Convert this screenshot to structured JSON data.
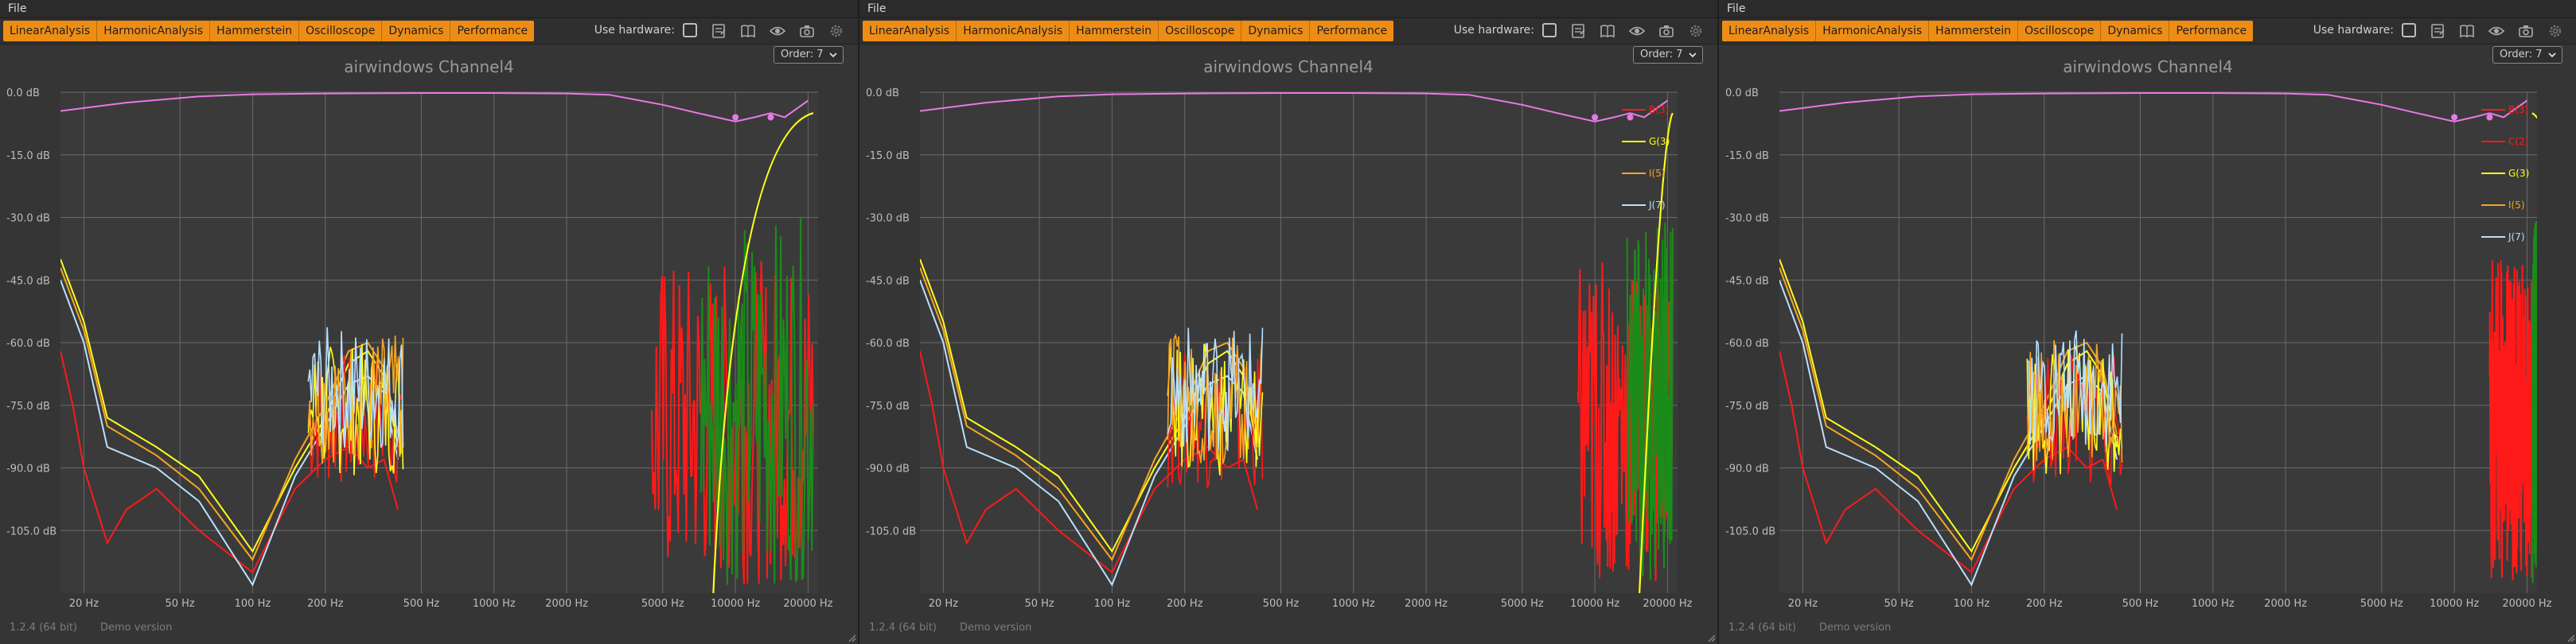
{
  "window_title": "airwindows Channel4",
  "menu": {
    "file": "File"
  },
  "tabs": [
    "LinearAnalysis",
    "HarmonicAnalysis",
    "Hammerstein",
    "Oscilloscope",
    "Dynamics",
    "Performance"
  ],
  "toolbar": {
    "use_hardware_label": "Use hardware:",
    "icons": [
      "notes-icon",
      "book-icon",
      "eye-icon",
      "camera-icon",
      "gear-icon"
    ]
  },
  "order_select": {
    "value": "Order: 7"
  },
  "footer": {
    "version": "1.2.4 (64 bit)",
    "edition": "Demo version"
  },
  "colors": {
    "accent_tab": "#ee8d16",
    "background": "#353535",
    "grid": "#6a6a6a",
    "fundamental": "#e879e6",
    "h2": "#ff1a1a",
    "h3": "#ffff1a",
    "h4": "#1a8c1a",
    "h5": "#f5a623",
    "h7": "#b8e0ff"
  },
  "panels": [
    {
      "id": "left",
      "legend": []
    },
    {
      "id": "middle",
      "legend": [
        "B(3)",
        "G(3)",
        "I(5)",
        "J(7)"
      ]
    },
    {
      "id": "right",
      "legend": [
        "B(3)",
        "C(2)",
        "G(3)",
        "I(5)",
        "J(7)"
      ]
    }
  ],
  "chart_data": {
    "type": "line",
    "title": "airwindows Channel4",
    "xlabel": "",
    "ylabel": "",
    "x_scale": "log",
    "xlim": [
      16,
      22000
    ],
    "ylim": [
      -120,
      0
    ],
    "x_ticks": [
      "20 Hz",
      "50 Hz",
      "100 Hz",
      "200 Hz",
      "500 Hz",
      "1000 Hz",
      "2000 Hz",
      "5000 Hz",
      "10000 Hz",
      "20000 Hz"
    ],
    "x_tick_values": [
      20,
      50,
      100,
      200,
      500,
      1000,
      2000,
      5000,
      10000,
      20000
    ],
    "y_ticks": [
      "0.0 dB",
      "-15.0 dB",
      "-30.0 dB",
      "-45.0 dB",
      "-60.0 dB",
      "-75.0 dB",
      "-90.0 dB",
      "-105.0 dB"
    ],
    "y_tick_values": [
      0,
      -15,
      -30,
      -45,
      -60,
      -75,
      -90,
      -105
    ],
    "grid": true,
    "legend_position": "top-right",
    "series": [
      {
        "name": "",
        "role": "fundamental",
        "x": [
          16,
          30,
          60,
          100,
          200,
          500,
          1000,
          2000,
          3000,
          5000,
          7000,
          10000,
          12000,
          14000,
          16000,
          20000
        ],
        "y": [
          -4.5,
          -2.5,
          -1.0,
          -0.5,
          -0.3,
          -0.2,
          -0.2,
          -0.3,
          -0.6,
          -3,
          -5,
          -7,
          -6,
          -5,
          -6,
          -2
        ]
      },
      {
        "name": "",
        "role": "h2",
        "x": [
          16,
          18,
          20,
          25,
          30,
          40,
          60,
          100,
          150,
          200,
          250,
          300,
          350,
          400
        ],
        "y": [
          -62,
          -75,
          -90,
          -108,
          -100,
          -95,
          -105,
          -115,
          -95,
          -88,
          -85,
          -90,
          -88,
          -100
        ]
      },
      {
        "name": "",
        "role": "h3",
        "x": [
          16,
          20,
          25,
          40,
          60,
          100,
          150,
          200,
          250,
          300,
          350,
          400
        ],
        "y": [
          -40,
          -55,
          -78,
          -85,
          -92,
          -110,
          -90,
          -78,
          -65,
          -62,
          -68,
          -85
        ]
      },
      {
        "name": "",
        "role": "h5",
        "x": [
          16,
          20,
          25,
          40,
          60,
          100,
          150,
          200,
          250,
          300,
          350,
          400
        ],
        "y": [
          -42,
          -57,
          -80,
          -87,
          -95,
          -112,
          -88,
          -75,
          -62,
          -60,
          -66,
          -82
        ]
      },
      {
        "name": "",
        "role": "h7",
        "x": [
          16,
          20,
          25,
          40,
          60,
          100,
          150,
          200,
          250,
          300,
          350,
          400
        ],
        "y": [
          -45,
          -60,
          -85,
          -90,
          -98,
          -118,
          -92,
          -80,
          -70,
          -68,
          -72,
          -88
        ]
      }
    ]
  }
}
